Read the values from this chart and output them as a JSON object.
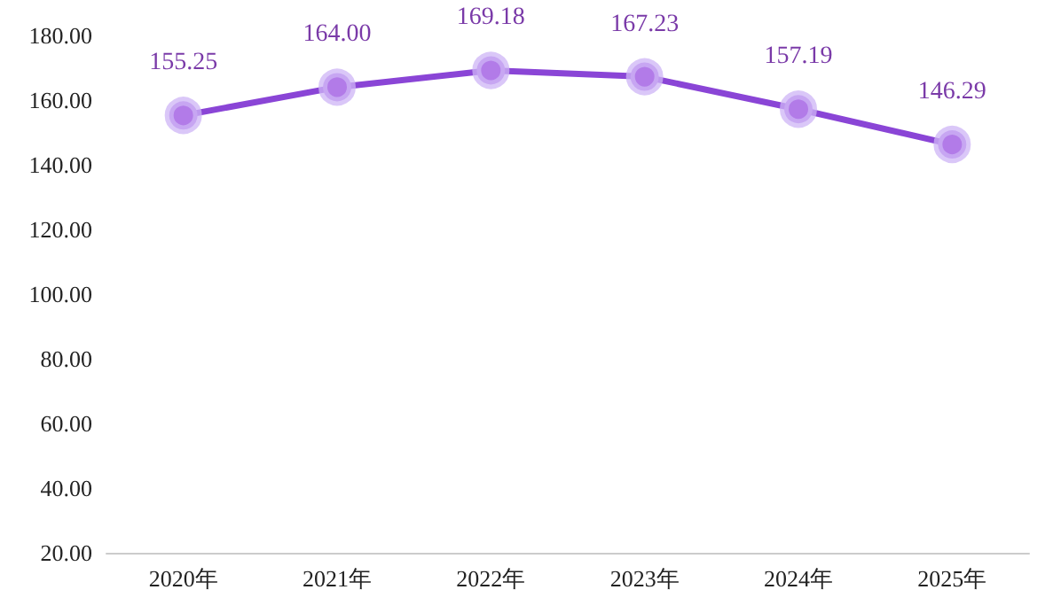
{
  "chart_data": {
    "type": "line",
    "categories": [
      "2020年",
      "2021年",
      "2022年",
      "2023年",
      "2024年",
      "2025年"
    ],
    "series": [
      {
        "color": "#8a45d6",
        "values": [
          155.25,
          164.0,
          169.18,
          167.23,
          157.19,
          146.29
        ],
        "value_labels": [
          "155.25",
          "164.00",
          "169.18",
          "167.23",
          "157.19",
          "146.29"
        ]
      }
    ],
    "ylim": [
      20,
      180
    ],
    "yticks": [
      {
        "value": 20,
        "label": "20.00"
      },
      {
        "value": 40,
        "label": "40.00"
      },
      {
        "value": 60,
        "label": "60.00"
      },
      {
        "value": 80,
        "label": "80.00"
      },
      {
        "value": 100,
        "label": "100.00"
      },
      {
        "value": 120,
        "label": "120.00"
      },
      {
        "value": 140,
        "label": "140.00"
      },
      {
        "value": 160,
        "label": "160.00"
      },
      {
        "value": 180,
        "label": "180.00"
      }
    ],
    "grid": false,
    "marker": "circle",
    "line_style": "solid"
  }
}
